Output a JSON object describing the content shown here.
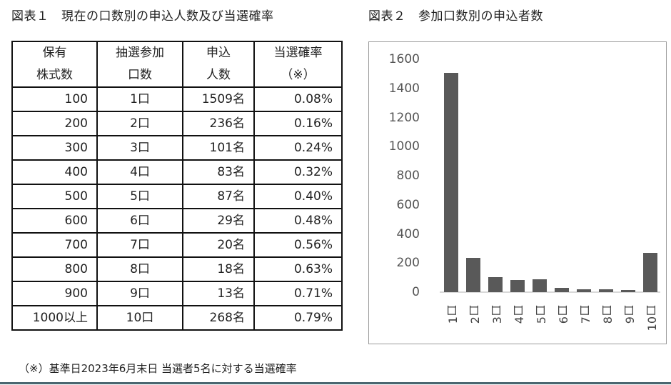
{
  "figure1": {
    "title": "図表１　現在の口数別の申込人数及び当選確率",
    "headers": [
      {
        "line1": "保有",
        "line2": "株式数"
      },
      {
        "line1": "抽選参加",
        "line2": "口数"
      },
      {
        "line1": "申込",
        "line2": "人数"
      },
      {
        "line1": "当選確率",
        "line2": "（※）"
      }
    ],
    "rows": [
      {
        "shares": "100",
        "units": "1口",
        "applicants": "1509名",
        "rate": "0.08%"
      },
      {
        "shares": "200",
        "units": "2口",
        "applicants": "236名",
        "rate": "0.16%"
      },
      {
        "shares": "300",
        "units": "3口",
        "applicants": "101名",
        "rate": "0.24%"
      },
      {
        "shares": "400",
        "units": "4口",
        "applicants": "83名",
        "rate": "0.32%"
      },
      {
        "shares": "500",
        "units": "5口",
        "applicants": "87名",
        "rate": "0.40%"
      },
      {
        "shares": "600",
        "units": "6口",
        "applicants": "29名",
        "rate": "0.48%"
      },
      {
        "shares": "700",
        "units": "7口",
        "applicants": "20名",
        "rate": "0.56%"
      },
      {
        "shares": "800",
        "units": "8口",
        "applicants": "18名",
        "rate": "0.63%"
      },
      {
        "shares": "900",
        "units": "9口",
        "applicants": "13名",
        "rate": "0.71%"
      },
      {
        "shares": "1000以上",
        "units": "10口",
        "applicants": "268名",
        "rate": "0.79%"
      }
    ]
  },
  "figure2": {
    "title": "図表２　参加口数別の申込者数"
  },
  "chart_data": {
    "type": "bar",
    "title": "図表２　参加口数別の申込者数",
    "categories": [
      "1口",
      "2口",
      "3口",
      "4口",
      "5口",
      "6口",
      "7口",
      "8口",
      "9口",
      "10口"
    ],
    "values": [
      1509,
      236,
      101,
      83,
      87,
      29,
      20,
      18,
      13,
      268
    ],
    "xlabel": "",
    "ylabel": "",
    "ylim": [
      0,
      1600
    ],
    "yticks": [
      "0",
      "200",
      "400",
      "600",
      "800",
      "1000",
      "1200",
      "1400",
      "1600"
    ],
    "grid": false,
    "legend": "none",
    "bar_color": "#595959"
  },
  "footnote": "（※）基準日2023年6月末日 当選者5名に対する当選確率",
  "colors": {
    "bar": "#595959",
    "bottom_rule": "#4a6670",
    "chart_border": "#9a9a9a"
  }
}
